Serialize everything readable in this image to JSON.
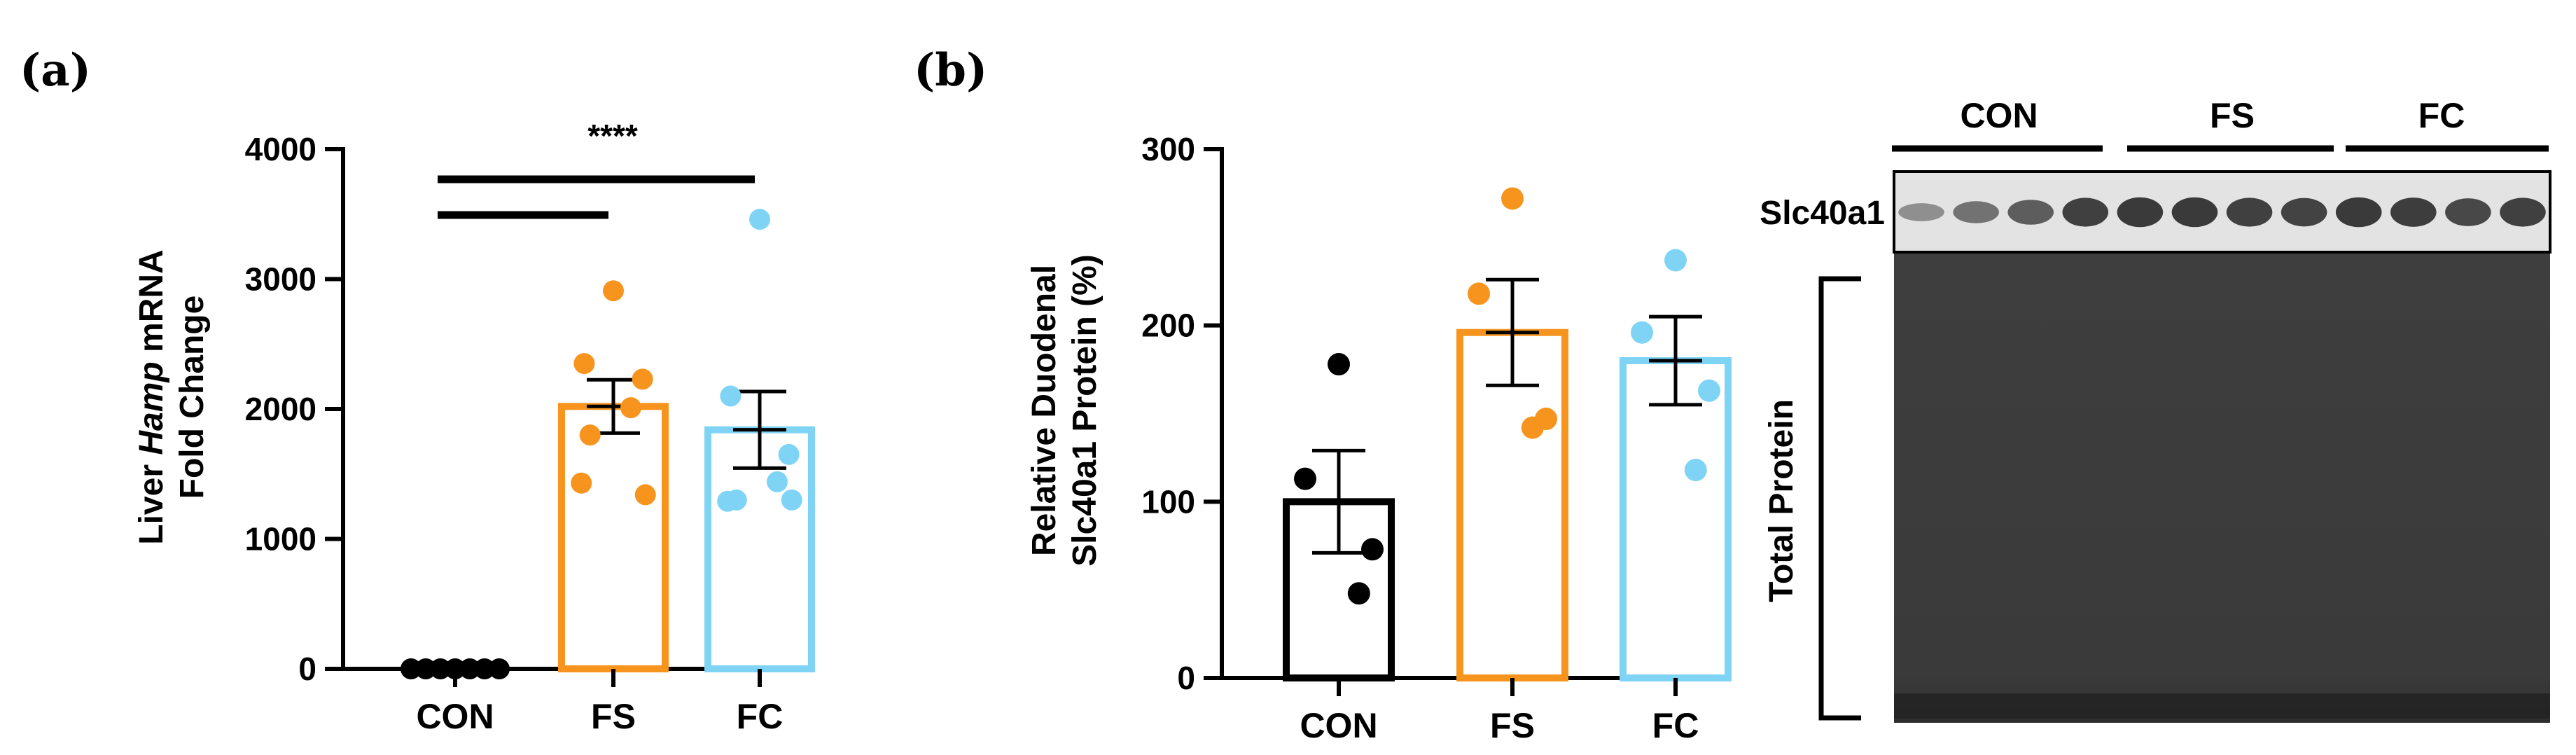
{
  "panel_a_label": "(a)",
  "panel_b_label": "(b)",
  "chart_data": [
    {
      "type": "bar",
      "panel": "(a)",
      "categories": [
        "CON",
        "FS",
        "FC"
      ],
      "means": [
        0,
        2020,
        1840
      ],
      "sem": [
        0,
        205,
        295
      ],
      "points": [
        [
          0,
          0,
          0,
          0,
          0,
          0,
          0
        ],
        [
          2910,
          2350,
          2230,
          2010,
          1800,
          1430,
          1340
        ],
        [
          3460,
          2100,
          1650,
          1440,
          1300,
          1290,
          1300
        ]
      ],
      "colors": [
        "#000000",
        "#f7941d",
        "#7fd4f5"
      ],
      "ylabel_lines": [
        "Liver Hamp mRNA",
        "Fold Change"
      ],
      "ylabel_prefix": "Liver ",
      "ylabel_italic": "Hamp",
      "ylabel_suffix": " mRNA",
      "ylabel_line2": "Fold Change",
      "yticks": [
        "0",
        "1000",
        "2000",
        "3000",
        "4000"
      ],
      "ylim": [
        0,
        4000
      ],
      "significance": "****",
      "sig_brackets": [
        [
          "CON",
          "FS"
        ],
        [
          "CON",
          "FC"
        ]
      ]
    },
    {
      "type": "bar",
      "panel": "(b)",
      "categories": [
        "CON",
        "FS",
        "FC"
      ],
      "means": [
        100,
        196,
        180
      ],
      "sem": [
        29,
        30,
        25
      ],
      "points": [
        [
          178,
          113,
          73,
          48
        ],
        [
          272,
          218,
          147,
          142
        ],
        [
          237,
          196,
          163,
          118
        ]
      ],
      "colors": [
        "#000000",
        "#f7941d",
        "#7fd4f5"
      ],
      "ylabel_lines": [
        "Relative Duodenal",
        "Slc40a1 Protein (%)"
      ],
      "yticks": [
        "0",
        "100",
        "200",
        "300"
      ],
      "ylim": [
        0,
        300
      ]
    }
  ],
  "blot": {
    "groups": [
      "CON",
      "FS",
      "FC"
    ],
    "band_label": "Slc40a1",
    "total_label": "Total Protein",
    "band_intensity": [
      0.35,
      0.55,
      0.7,
      0.9,
      0.95,
      0.95,
      0.9,
      0.88,
      0.95,
      0.92,
      0.85,
      0.9
    ]
  }
}
